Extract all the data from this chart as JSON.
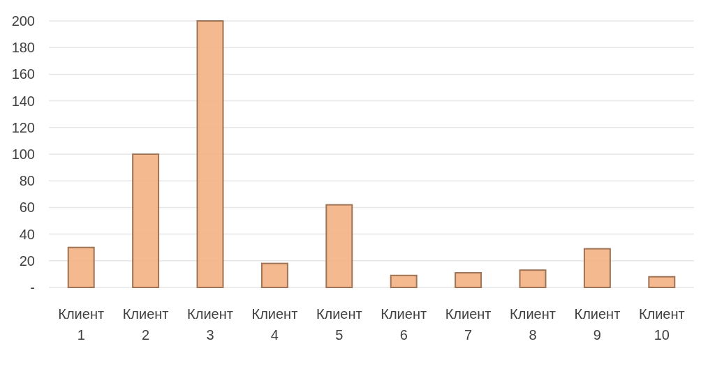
{
  "chart_data": {
    "type": "bar",
    "categories": [
      "Клиент 1",
      "Клиент 2",
      "Клиент 3",
      "Клиент 4",
      "Клиент 5",
      "Клиент 6",
      "Клиент 7",
      "Клиент 8",
      "Клиент 9",
      "Клиент 10"
    ],
    "values": [
      30,
      100,
      200,
      18,
      62,
      9,
      11,
      13,
      29,
      8
    ],
    "color": "#f4b183",
    "ylim": [
      0,
      200
    ],
    "yticks": [
      {
        "value": 0,
        "label": "-"
      },
      20,
      40,
      60,
      80,
      100,
      120,
      140,
      160,
      180,
      200
    ],
    "grid": "y"
  }
}
